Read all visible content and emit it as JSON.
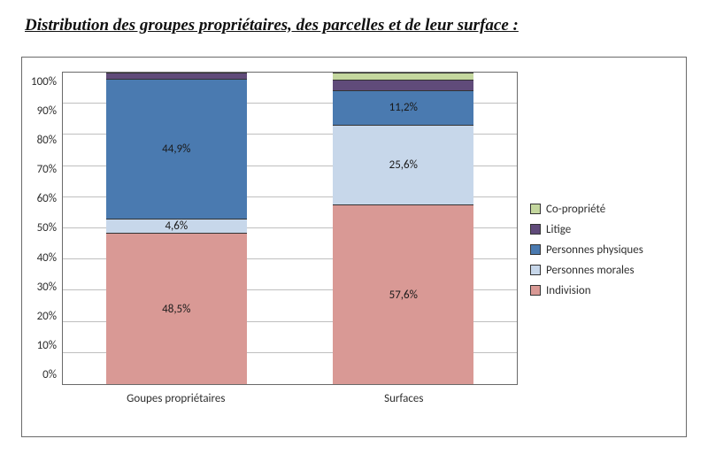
{
  "title": "Distribution des groupes propriétaires, des parcelles et de leur surface :",
  "chart": {
    "type": "stacked-bar-100",
    "background_color": "#ffffff",
    "border_color": "#6a6a6a",
    "grid_color": "#bfbfbf",
    "label_fontsize": 13,
    "ylim": [
      0,
      100
    ],
    "ytick_step": 10,
    "yticks": [
      "100%",
      "90%",
      "80%",
      "70%",
      "60%",
      "50%",
      "40%",
      "30%",
      "20%",
      "10%",
      "0%"
    ],
    "categories": [
      "Goupes propriétaires",
      "Surfaces"
    ],
    "series_order": [
      "indivision",
      "personnes_morales",
      "personnes_physiques",
      "litige",
      "co_propriete"
    ],
    "series": {
      "co_propriete": {
        "label": "Co-propriété",
        "color": "#c4d79e"
      },
      "litige": {
        "label": "Litige",
        "color": "#604b7a"
      },
      "personnes_physiques": {
        "label": "Personnes physiques",
        "color": "#4a7ab0"
      },
      "personnes_morales": {
        "label": "Personnes morales",
        "color": "#c7d7ea"
      },
      "indivision": {
        "label": "Indivision",
        "color": "#d99995"
      }
    },
    "legend_order": [
      "co_propriete",
      "litige",
      "personnes_physiques",
      "personnes_morales",
      "indivision"
    ],
    "data": [
      {
        "category": "Goupes propriétaires",
        "segments": [
          {
            "k": "indivision",
            "value": 48.5,
            "label": "48,5%"
          },
          {
            "k": "personnes_morales",
            "value": 4.6,
            "label": "4,6%"
          },
          {
            "k": "personnes_physiques",
            "value": 44.9,
            "label": "44,9%"
          },
          {
            "k": "litige",
            "value": 2.0,
            "label": ""
          },
          {
            "k": "co_propriete",
            "value": 0.0,
            "label": ""
          }
        ]
      },
      {
        "category": "Surfaces",
        "segments": [
          {
            "k": "indivision",
            "value": 57.6,
            "label": "57,6%"
          },
          {
            "k": "personnes_morales",
            "value": 25.6,
            "label": "25,6%"
          },
          {
            "k": "personnes_physiques",
            "value": 11.2,
            "label": "11,2%"
          },
          {
            "k": "litige",
            "value": 3.3,
            "label": ""
          },
          {
            "k": "co_propriete",
            "value": 2.3,
            "label": ""
          }
        ]
      }
    ]
  }
}
